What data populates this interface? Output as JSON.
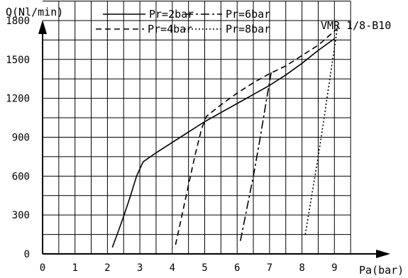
{
  "chart_data": {
    "type": "line",
    "title": "VMR 1/8-B10",
    "xlabel": "Pa(bar)",
    "ylabel": "Q(Nl/min)",
    "xlim": [
      0,
      9.5
    ],
    "ylim": [
      0,
      1950
    ],
    "x_ticks": [
      "0",
      "1",
      "2",
      "3",
      "4",
      "5",
      "6",
      "7",
      "8",
      "9"
    ],
    "y_ticks": [
      "0",
      "300",
      "600",
      "900",
      "1200",
      "1500",
      "1800"
    ],
    "grid": true,
    "legend_position": "top",
    "series": [
      {
        "name": "Pr=2bar",
        "style": "solid",
        "x": [
          2.15,
          2.3,
          2.5,
          2.7,
          2.9,
          3.1,
          3.5,
          4.0,
          4.5,
          5.0,
          5.5,
          6.0,
          6.5,
          7.0,
          7.5,
          8.0,
          8.5,
          9.0
        ],
        "y": [
          50,
          150,
          290,
          440,
          600,
          710,
          780,
          860,
          940,
          1020,
          1090,
          1160,
          1230,
          1300,
          1380,
          1470,
          1570,
          1660
        ]
      },
      {
        "name": "Pr=4bar",
        "style": "dashed",
        "x": [
          4.1,
          4.3,
          4.5,
          4.7,
          4.9,
          5.05,
          5.5,
          6.0,
          6.5,
          7.0,
          7.5,
          8.0,
          8.5,
          9.1
        ],
        "y": [
          70,
          300,
          530,
          760,
          960,
          1060,
          1150,
          1240,
          1320,
          1390,
          1450,
          1530,
          1610,
          1740
        ]
      },
      {
        "name": "Pr=6bar",
        "style": "dash-dot",
        "x": [
          6.1,
          6.3,
          6.5,
          6.7,
          6.9,
          7.05
        ],
        "y": [
          100,
          350,
          600,
          880,
          1180,
          1400
        ]
      },
      {
        "name": "Pr=8bar",
        "style": "dotted",
        "x": [
          8.1,
          8.3,
          8.5,
          8.7,
          8.9,
          9.1
        ],
        "y": [
          150,
          450,
          750,
          1080,
          1420,
          1760
        ]
      }
    ]
  }
}
